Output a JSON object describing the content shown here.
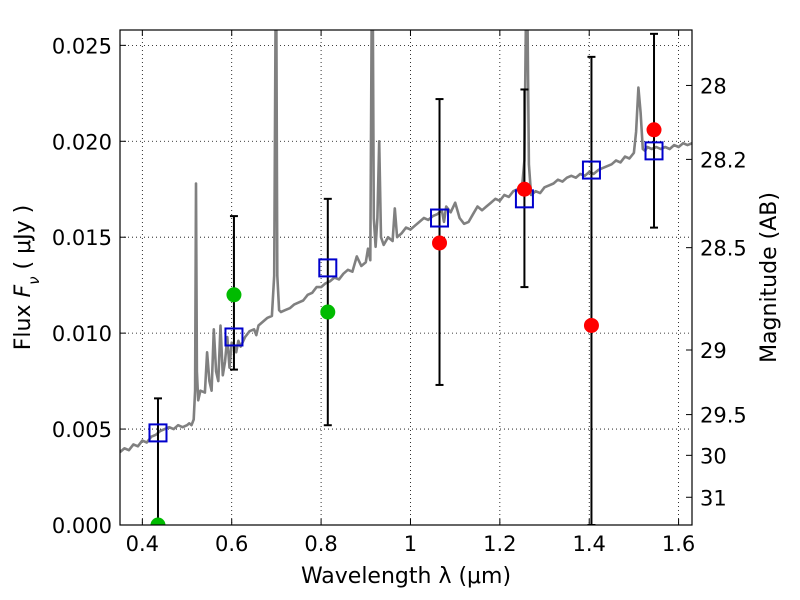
{
  "chart_data": {
    "type": "scatter",
    "xlabel": "Wavelength  λ (μm)",
    "ylabel": "Flux  F_ν  ( μJy )",
    "ylabel_parts": {
      "pre": "Flux  ",
      "sym": "F",
      "sub": "ν",
      "post": "  ( μJy )"
    },
    "y2label": "Magnitude (AB)",
    "xlim": [
      0.35,
      1.63
    ],
    "ylim": [
      0.0,
      0.0258
    ],
    "grid": true,
    "xticks": [
      {
        "v": 0.4,
        "label": "0.4"
      },
      {
        "v": 0.6,
        "label": "0.6"
      },
      {
        "v": 0.8,
        "label": "0.8"
      },
      {
        "v": 1.0,
        "label": "1"
      },
      {
        "v": 1.2,
        "label": "1.2"
      },
      {
        "v": 1.4,
        "label": "1.4"
      },
      {
        "v": 1.6,
        "label": "1.6"
      }
    ],
    "yticks": [
      {
        "v": 0.0,
        "label": "0.000"
      },
      {
        "v": 0.005,
        "label": "0.005"
      },
      {
        "v": 0.01,
        "label": "0.010"
      },
      {
        "v": 0.015,
        "label": "0.015"
      },
      {
        "v": 0.02,
        "label": "0.020"
      },
      {
        "v": 0.025,
        "label": "0.025"
      }
    ],
    "y2ticks": [
      {
        "label": "28",
        "mag": 28.0
      },
      {
        "label": "28.2",
        "mag": 28.2
      },
      {
        "label": "28.5",
        "mag": 28.5
      },
      {
        "label": "29",
        "mag": 29.0
      },
      {
        "label": "29.5",
        "mag": 29.5
      },
      {
        "label": "30",
        "mag": 30.0
      },
      {
        "label": "31",
        "mag": 31.0
      }
    ],
    "series": [
      {
        "kind": "line",
        "color": "#808080",
        "points": [
          [
            0.35,
            0.0038
          ],
          [
            0.36,
            0.004
          ],
          [
            0.37,
            0.0039
          ],
          [
            0.38,
            0.0042
          ],
          [
            0.39,
            0.0041
          ],
          [
            0.4,
            0.0044
          ],
          [
            0.41,
            0.0043
          ],
          [
            0.42,
            0.0046
          ],
          [
            0.43,
            0.0047
          ],
          [
            0.44,
            0.0049
          ],
          [
            0.45,
            0.005
          ],
          [
            0.46,
            0.0051
          ],
          [
            0.47,
            0.005
          ],
          [
            0.48,
            0.0052
          ],
          [
            0.49,
            0.0051
          ],
          [
            0.5,
            0.0052
          ],
          [
            0.505,
            0.0053
          ],
          [
            0.51,
            0.0052
          ],
          [
            0.515,
            0.0055
          ],
          [
            0.518,
            0.007
          ],
          [
            0.52,
            0.0178
          ],
          [
            0.522,
            0.008
          ],
          [
            0.525,
            0.0065
          ],
          [
            0.53,
            0.007
          ],
          [
            0.54,
            0.0069
          ],
          [
            0.545,
            0.009
          ],
          [
            0.55,
            0.0075
          ],
          [
            0.555,
            0.007
          ],
          [
            0.56,
            0.0102
          ],
          [
            0.565,
            0.008
          ],
          [
            0.57,
            0.0075
          ],
          [
            0.575,
            0.0104
          ],
          [
            0.58,
            0.0078
          ],
          [
            0.585,
            0.0085
          ],
          [
            0.59,
            0.0098
          ],
          [
            0.595,
            0.0082
          ],
          [
            0.6,
            0.0095
          ],
          [
            0.605,
            0.0094
          ],
          [
            0.61,
            0.009
          ],
          [
            0.615,
            0.0096
          ],
          [
            0.62,
            0.0093
          ],
          [
            0.63,
            0.0098
          ],
          [
            0.64,
            0.0101
          ],
          [
            0.65,
            0.0102
          ],
          [
            0.655,
            0.0099
          ],
          [
            0.66,
            0.0104
          ],
          [
            0.67,
            0.0106
          ],
          [
            0.68,
            0.0108
          ],
          [
            0.69,
            0.0109
          ],
          [
            0.695,
            0.013
          ],
          [
            0.698,
            0.0258
          ],
          [
            0.7,
            0.0258
          ],
          [
            0.702,
            0.013
          ],
          [
            0.706,
            0.0112
          ],
          [
            0.71,
            0.0111
          ],
          [
            0.72,
            0.0112
          ],
          [
            0.73,
            0.0113
          ],
          [
            0.74,
            0.0115
          ],
          [
            0.75,
            0.0116
          ],
          [
            0.76,
            0.0117
          ],
          [
            0.77,
            0.012
          ],
          [
            0.78,
            0.0121
          ],
          [
            0.79,
            0.0124
          ],
          [
            0.8,
            0.0124
          ],
          [
            0.81,
            0.0126
          ],
          [
            0.82,
            0.0127
          ],
          [
            0.83,
            0.0129
          ],
          [
            0.84,
            0.0128
          ],
          [
            0.85,
            0.0131
          ],
          [
            0.86,
            0.0133
          ],
          [
            0.87,
            0.0132
          ],
          [
            0.88,
            0.014
          ],
          [
            0.89,
            0.0135
          ],
          [
            0.9,
            0.0137
          ],
          [
            0.905,
            0.0144
          ],
          [
            0.91,
            0.0138
          ],
          [
            0.913,
            0.0258
          ],
          [
            0.916,
            0.0258
          ],
          [
            0.918,
            0.016
          ],
          [
            0.922,
            0.0145
          ],
          [
            0.926,
            0.016
          ],
          [
            0.93,
            0.02
          ],
          [
            0.934,
            0.015
          ],
          [
            0.94,
            0.0146
          ],
          [
            0.95,
            0.015
          ],
          [
            0.96,
            0.0148
          ],
          [
            0.965,
            0.0165
          ],
          [
            0.97,
            0.015
          ],
          [
            0.98,
            0.0152
          ],
          [
            0.99,
            0.0155
          ],
          [
            1.0,
            0.0154
          ],
          [
            1.01,
            0.0156
          ],
          [
            1.02,
            0.0158
          ],
          [
            1.03,
            0.016
          ],
          [
            1.04,
            0.0159
          ],
          [
            1.05,
            0.0161
          ],
          [
            1.06,
            0.0162
          ],
          [
            1.07,
            0.0164
          ],
          [
            1.075,
            0.0158
          ],
          [
            1.08,
            0.0166
          ],
          [
            1.09,
            0.0163
          ],
          [
            1.1,
            0.0168
          ],
          [
            1.11,
            0.016
          ],
          [
            1.12,
            0.0157
          ],
          [
            1.13,
            0.0158
          ],
          [
            1.14,
            0.0162
          ],
          [
            1.15,
            0.0166
          ],
          [
            1.16,
            0.0164
          ],
          [
            1.17,
            0.0166
          ],
          [
            1.18,
            0.0168
          ],
          [
            1.19,
            0.017
          ],
          [
            1.2,
            0.0169
          ],
          [
            1.21,
            0.0172
          ],
          [
            1.22,
            0.0171
          ],
          [
            1.23,
            0.0174
          ],
          [
            1.24,
            0.0175
          ],
          [
            1.25,
            0.0177
          ],
          [
            1.255,
            0.019
          ],
          [
            1.258,
            0.0258
          ],
          [
            1.262,
            0.0258
          ],
          [
            1.265,
            0.0188
          ],
          [
            1.27,
            0.0172
          ],
          [
            1.28,
            0.0174
          ],
          [
            1.29,
            0.0173
          ],
          [
            1.3,
            0.0176
          ],
          [
            1.31,
            0.0177
          ],
          [
            1.32,
            0.0178
          ],
          [
            1.33,
            0.018
          ],
          [
            1.34,
            0.0179
          ],
          [
            1.35,
            0.0181
          ],
          [
            1.36,
            0.0182
          ],
          [
            1.37,
            0.0181
          ],
          [
            1.38,
            0.0183
          ],
          [
            1.39,
            0.0182
          ],
          [
            1.4,
            0.0184
          ],
          [
            1.41,
            0.0183
          ],
          [
            1.42,
            0.0185
          ],
          [
            1.43,
            0.0186
          ],
          [
            1.44,
            0.0187
          ],
          [
            1.45,
            0.0188
          ],
          [
            1.46,
            0.019
          ],
          [
            1.47,
            0.0189
          ],
          [
            1.48,
            0.0192
          ],
          [
            1.49,
            0.0191
          ],
          [
            1.5,
            0.0194
          ],
          [
            1.505,
            0.0205
          ],
          [
            1.51,
            0.0228
          ],
          [
            1.515,
            0.0215
          ],
          [
            1.52,
            0.0196
          ],
          [
            1.525,
            0.0195
          ],
          [
            1.53,
            0.0197
          ],
          [
            1.54,
            0.0196
          ],
          [
            1.55,
            0.0197
          ],
          [
            1.56,
            0.0196
          ],
          [
            1.57,
            0.0197
          ],
          [
            1.58,
            0.0196
          ],
          [
            1.59,
            0.0198
          ],
          [
            1.6,
            0.0197
          ],
          [
            1.61,
            0.0199
          ],
          [
            1.62,
            0.0198
          ],
          [
            1.63,
            0.0199
          ]
        ]
      },
      {
        "kind": "errorbar",
        "color": "#000000",
        "bars": [
          {
            "x": 0.435,
            "lo": 0.0,
            "hi": 0.0066
          },
          {
            "x": 0.605,
            "lo": 0.0081,
            "hi": 0.0161
          },
          {
            "x": 0.815,
            "lo": 0.0052,
            "hi": 0.017
          },
          {
            "x": 1.065,
            "lo": 0.0073,
            "hi": 0.0222
          },
          {
            "x": 1.255,
            "lo": 0.0124,
            "hi": 0.0227
          },
          {
            "x": 1.405,
            "lo": 0.0,
            "hi": 0.0244
          },
          {
            "x": 1.545,
            "lo": 0.0155,
            "hi": 0.0256
          }
        ]
      },
      {
        "kind": "square",
        "color": "#0000cc",
        "points": [
          [
            0.435,
            0.0048
          ],
          [
            0.605,
            0.0098
          ],
          [
            0.815,
            0.0134
          ],
          [
            1.065,
            0.016
          ],
          [
            1.255,
            0.017
          ],
          [
            1.405,
            0.0185
          ],
          [
            1.545,
            0.0195
          ]
        ]
      },
      {
        "kind": "circle",
        "color": "#00bb00",
        "points": [
          [
            0.435,
            0.0
          ],
          [
            0.605,
            0.012
          ],
          [
            0.815,
            0.0111
          ]
        ]
      },
      {
        "kind": "circle",
        "color": "#ff0000",
        "points": [
          [
            1.065,
            0.0147
          ],
          [
            1.255,
            0.0175
          ],
          [
            1.405,
            0.0104
          ],
          [
            1.545,
            0.0206
          ]
        ]
      }
    ]
  }
}
